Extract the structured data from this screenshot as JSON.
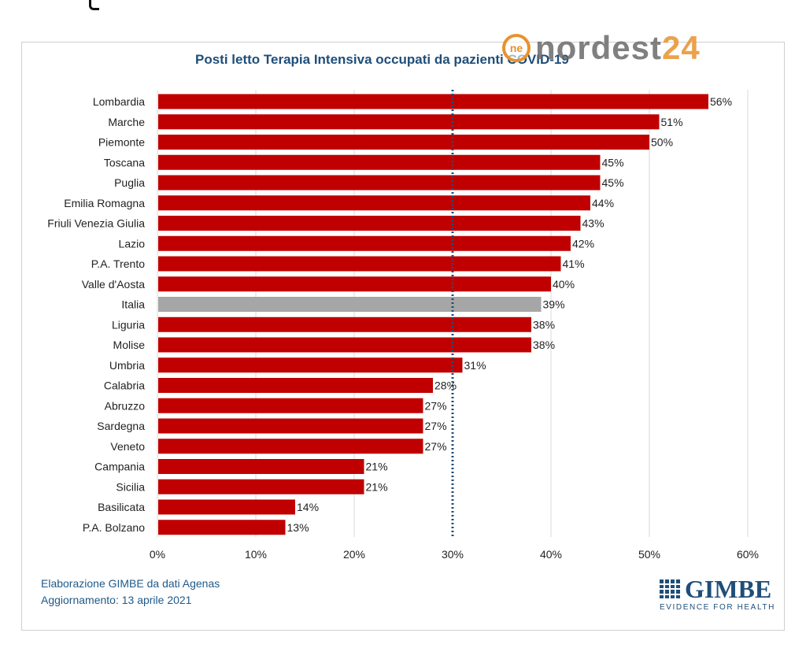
{
  "watermark": {
    "logo_mark": "ne",
    "brand": "nordest",
    "brand_accent": "24",
    "accent_color": "#e8922e"
  },
  "chart_data": {
    "type": "bar",
    "orientation": "horizontal",
    "title": "Posti letto Terapia  Intensiva occupati da pazienti COVID-19",
    "categories": [
      "Lombardia",
      "Marche",
      "Piemonte",
      "Toscana",
      "Puglia",
      "Emilia Romagna",
      "Friuli Venezia Giulia",
      "Lazio",
      "P.A. Trento",
      "Valle d'Aosta",
      "Italia",
      "Liguria",
      "Molise",
      "Umbria",
      "Calabria",
      "Abruzzo",
      "Sardegna",
      "Veneto",
      "Campania",
      "Sicilia",
      "Basilicata",
      "P.A. Bolzano"
    ],
    "values": [
      56,
      51,
      50,
      45,
      45,
      44,
      43,
      42,
      41,
      40,
      39,
      38,
      38,
      31,
      28,
      27,
      27,
      27,
      21,
      21,
      14,
      13
    ],
    "labels": [
      "56%",
      "51%",
      "50%",
      "45%",
      "45%",
      "44%",
      "43%",
      "42%",
      "41%",
      "40%",
      "39%",
      "38%",
      "38%",
      "31%",
      "28%",
      "27%",
      "27%",
      "27%",
      "21%",
      "21%",
      "14%",
      "13%"
    ],
    "highlight_category": "Italia",
    "bar_color": "#c00000",
    "highlight_color": "#a6a6a6",
    "xlim": [
      0,
      60
    ],
    "xticks": [
      0,
      10,
      20,
      30,
      40,
      50,
      60
    ],
    "xtick_labels": [
      "0%",
      "10%",
      "20%",
      "30%",
      "40%",
      "50%",
      "60%"
    ],
    "threshold": {
      "value": 30,
      "style": "dotted",
      "color": "#1f4e79"
    },
    "grid": "vertical"
  },
  "footer": {
    "source": "Elaborazione GIMBE da dati Agenas",
    "updated": "Aggiornamento: 13 aprile 2021"
  },
  "logo": {
    "name": "GIMBE",
    "tagline": "EVIDENCE FOR HEALTH",
    "color": "#1f4e79"
  }
}
